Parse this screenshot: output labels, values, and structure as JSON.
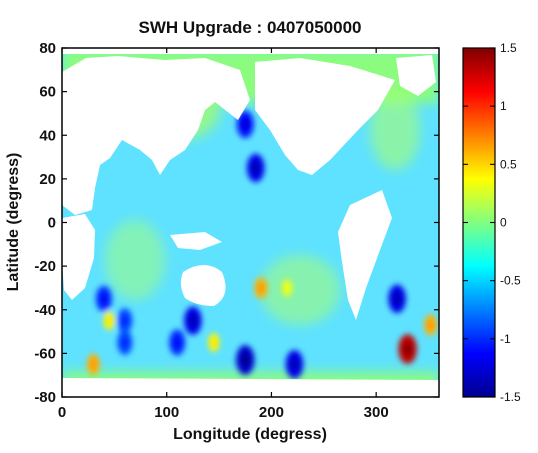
{
  "chart_data": {
    "type": "heatmap",
    "title": "SWH Upgrade : 0407050000",
    "xlabel": "Longitude (degress)",
    "ylabel": "Latitude (degress)",
    "xlim": [
      0,
      360
    ],
    "ylim": [
      -80,
      80
    ],
    "x_ticks": [
      0,
      100,
      200,
      300
    ],
    "y_ticks": [
      80,
      60,
      40,
      20,
      0,
      -20,
      -40,
      -60,
      -80
    ],
    "colorbar": {
      "range": [
        -1.5,
        1.5
      ],
      "ticks": [
        1.5,
        1,
        0.5,
        0,
        -0.5,
        -1,
        -1.5
      ],
      "colormap": "jet"
    },
    "background_value": -0.1,
    "anomalies": [
      {
        "lon": 185,
        "lat": 25,
        "value": -1.2
      },
      {
        "lon": 175,
        "lat": 45,
        "value": -1.1
      },
      {
        "lon": 195,
        "lat": 55,
        "value": -0.8
      },
      {
        "lon": 40,
        "lat": -35,
        "value": -1.0
      },
      {
        "lon": 110,
        "lat": -55,
        "value": -1.0
      },
      {
        "lon": 125,
        "lat": -45,
        "value": -1.2
      },
      {
        "lon": 175,
        "lat": -63,
        "value": -1.3
      },
      {
        "lon": 222,
        "lat": -65,
        "value": -1.2
      },
      {
        "lon": 60,
        "lat": -45,
        "value": -0.9
      },
      {
        "lon": 60,
        "lat": -55,
        "value": -0.9
      },
      {
        "lon": 320,
        "lat": -35,
        "value": -1.2
      },
      {
        "lon": 330,
        "lat": -58,
        "value": 1.3
      },
      {
        "lon": 190,
        "lat": -30,
        "value": 0.6
      },
      {
        "lon": 30,
        "lat": -65,
        "value": 0.6
      },
      {
        "lon": 45,
        "lat": -45,
        "value": 0.4
      },
      {
        "lon": 145,
        "lat": -55,
        "value": 0.4
      },
      {
        "lon": 215,
        "lat": -30,
        "value": 0.3
      },
      {
        "lon": 352,
        "lat": -47,
        "value": 0.6
      }
    ]
  }
}
